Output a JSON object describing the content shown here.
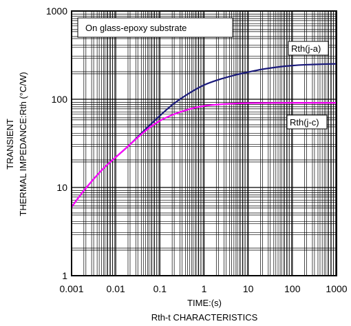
{
  "chart_data": {
    "type": "line",
    "title": "Rth-t CHARACTERISTICS",
    "xlabel": "TIME:(s)",
    "ylabel_lines": [
      "TRANSIENT",
      "THERMAL IMPEDANCE:Rth (°C/W)"
    ],
    "annotation": "On glass-epoxy substrate",
    "x_scale": "log",
    "y_scale": "log",
    "xlim": [
      0.001,
      1000
    ],
    "ylim": [
      1,
      1000
    ],
    "x_ticks": [
      {
        "value": 0.001,
        "label": "0.001"
      },
      {
        "value": 0.01,
        "label": "0.01"
      },
      {
        "value": 0.1,
        "label": "0.1"
      },
      {
        "value": 1,
        "label": "1"
      },
      {
        "value": 10,
        "label": "10"
      },
      {
        "value": 100,
        "label": "100"
      },
      {
        "value": 1000,
        "label": "1000"
      }
    ],
    "y_ticks": [
      {
        "value": 1,
        "label": "1"
      },
      {
        "value": 10,
        "label": "10"
      },
      {
        "value": 100,
        "label": "100"
      },
      {
        "value": 1000,
        "label": "1000"
      }
    ],
    "grid": true,
    "series": [
      {
        "name": "Rth(j-a)",
        "color": "#1a1a7a",
        "points": [
          [
            0.001,
            6.0
          ],
          [
            0.002,
            9.5
          ],
          [
            0.005,
            16.0
          ],
          [
            0.01,
            22.0
          ],
          [
            0.02,
            30.0
          ],
          [
            0.05,
            47.0
          ],
          [
            0.1,
            65.0
          ],
          [
            0.2,
            88.0
          ],
          [
            0.5,
            120.0
          ],
          [
            1,
            145.0
          ],
          [
            2,
            165.0
          ],
          [
            5,
            188.0
          ],
          [
            10,
            203.0
          ],
          [
            20,
            218.0
          ],
          [
            50,
            233.0
          ],
          [
            100,
            241.0
          ],
          [
            200,
            246.0
          ],
          [
            500,
            250.0
          ],
          [
            1000,
            252.0
          ]
        ]
      },
      {
        "name": "Rth(j-c)",
        "color": "#ff00ff",
        "points": [
          [
            0.001,
            6.0
          ],
          [
            0.002,
            9.5
          ],
          [
            0.005,
            16.0
          ],
          [
            0.01,
            22.0
          ],
          [
            0.02,
            30.0
          ],
          [
            0.05,
            45.0
          ],
          [
            0.1,
            57.0
          ],
          [
            0.2,
            67.0
          ],
          [
            0.5,
            78.0
          ],
          [
            1,
            84.0
          ],
          [
            2,
            87.0
          ],
          [
            5,
            89.5
          ],
          [
            10,
            90.5
          ],
          [
            100,
            91.0
          ],
          [
            1000,
            91.0
          ]
        ]
      }
    ]
  }
}
